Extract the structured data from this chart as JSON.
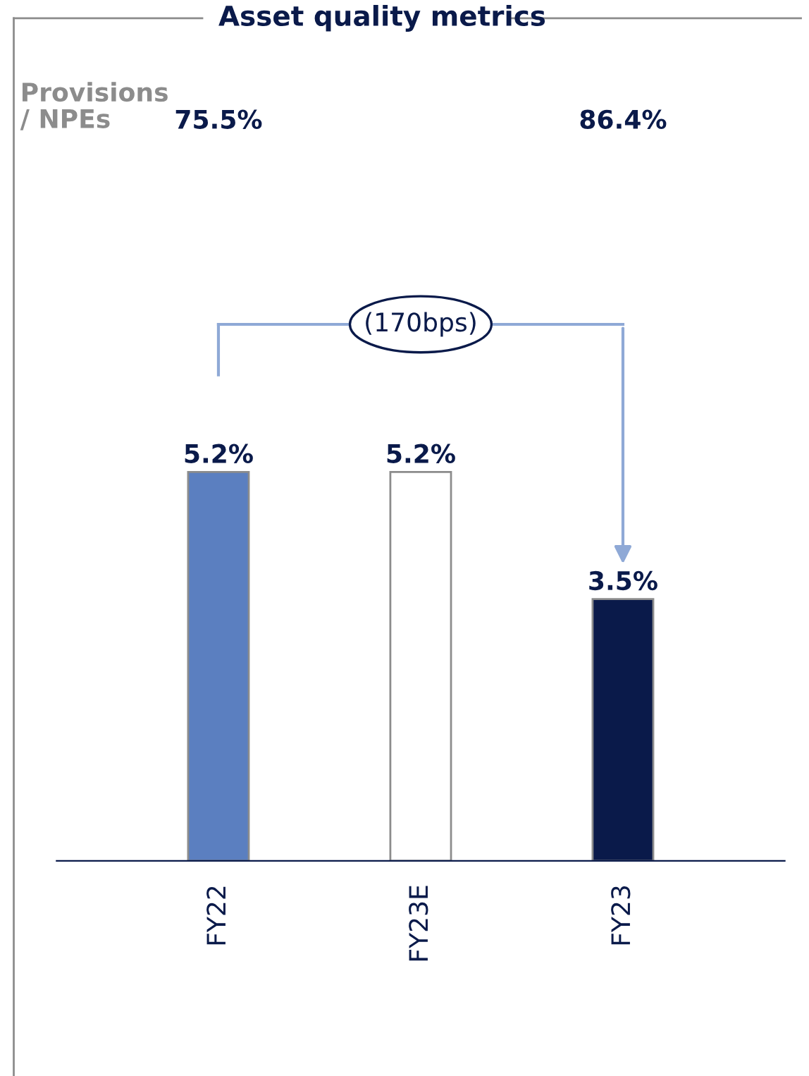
{
  "chart_data": {
    "type": "bar",
    "title": "Asset quality metrics",
    "categories": [
      "FY22",
      "FY23E",
      "FY23"
    ],
    "values": [
      5.2,
      5.2,
      3.5
    ],
    "colors": [
      "#5b7fc0",
      "#ffffff",
      "#0a1a4a"
    ],
    "value_labels": [
      "5.2%",
      "5.2%",
      "3.5%"
    ],
    "annotations": [
      "Provisions\n/ NPEs",
      "75.5%",
      "86.4%",
      "(170bps)"
    ],
    "grid": false,
    "legend": false
  }
}
